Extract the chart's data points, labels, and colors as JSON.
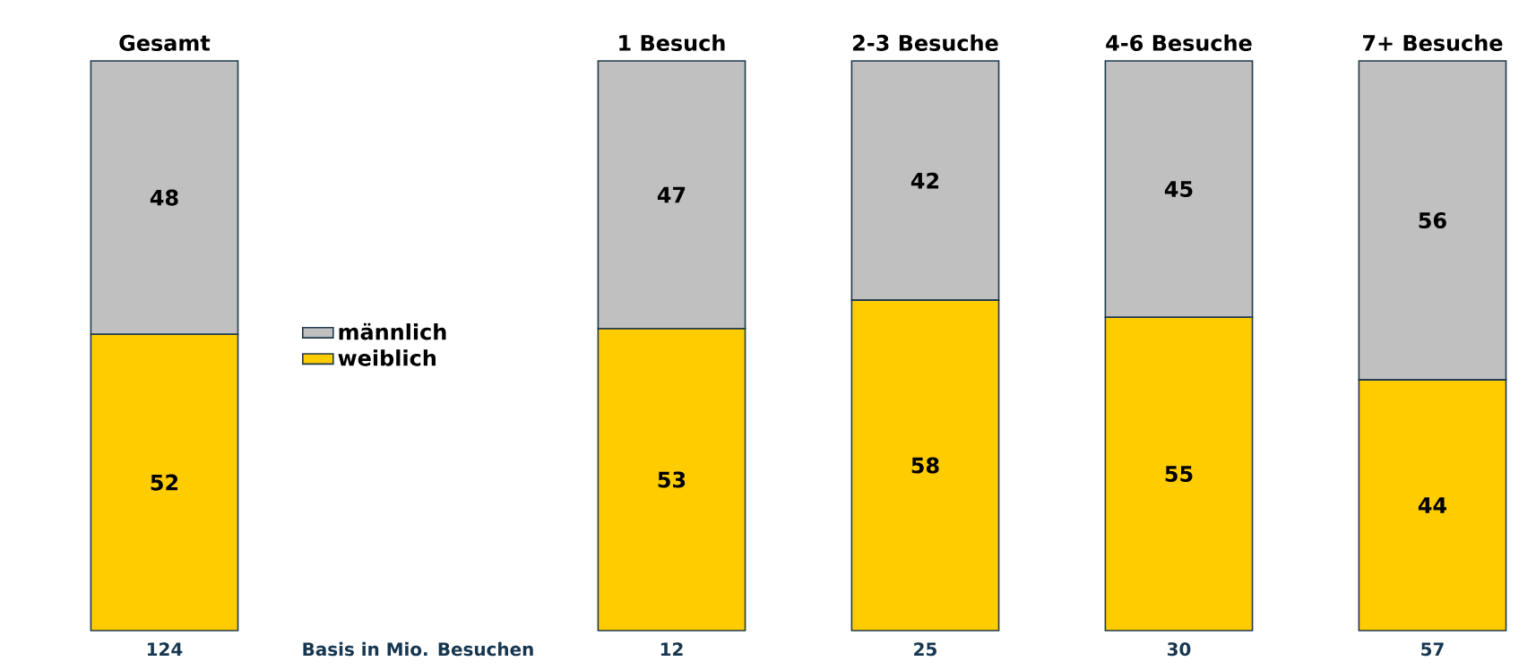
{
  "chart_data": {
    "type": "bar",
    "stacked": true,
    "data_labels": true,
    "legend": "left",
    "categories": [
      "Gesamt",
      null,
      "1 Besuch",
      "2-3 Besuche",
      "4-6 Besuche",
      "7+ Besuche"
    ],
    "series": [
      {
        "name": "weiblich",
        "color": "#ffcc00",
        "values": [
          52,
          null,
          53,
          58,
          55,
          44
        ]
      },
      {
        "name": "männlich",
        "color": "#c0c0c0",
        "values": [
          48,
          null,
          47,
          42,
          45,
          56
        ]
      }
    ],
    "annotations": [
      "124",
      "Basis in Mio. Besuchen",
      "12",
      "25",
      "30",
      "57"
    ]
  }
}
